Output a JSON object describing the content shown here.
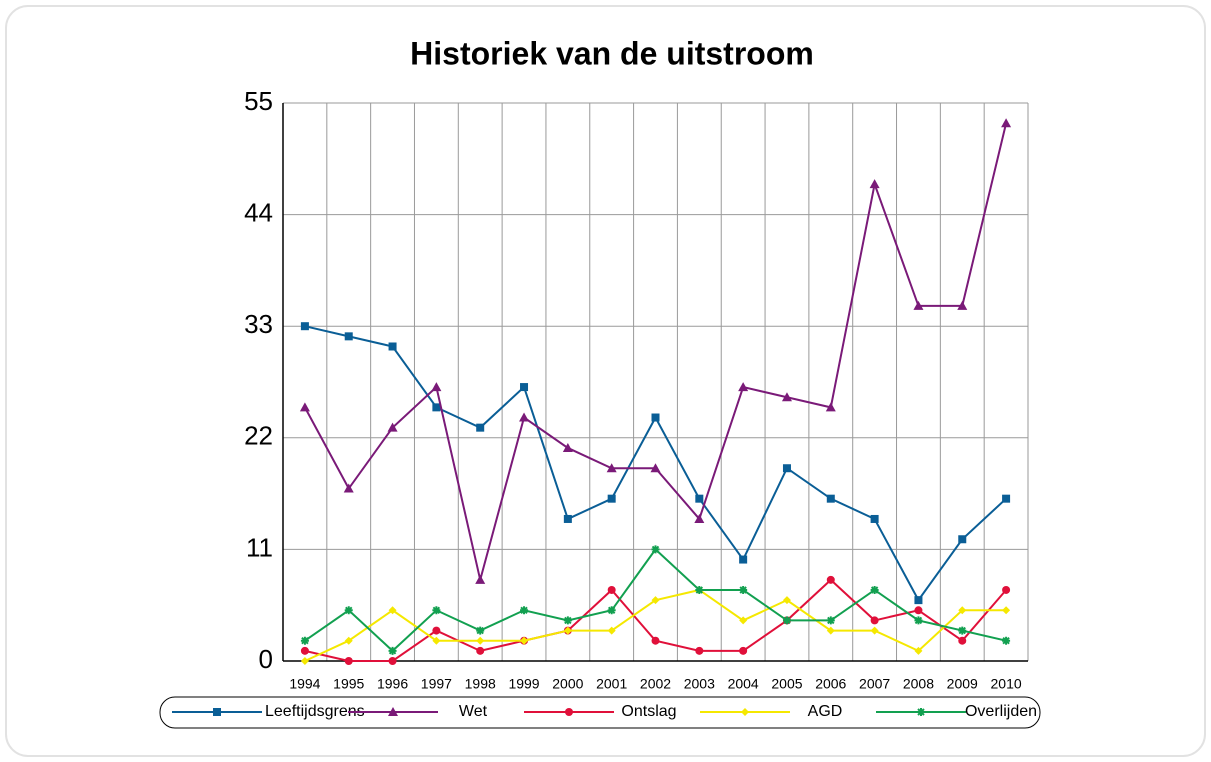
{
  "chart_data": {
    "type": "line",
    "title": "Historiek van de uitstroom",
    "categories": [
      "1994",
      "1995",
      "1996",
      "1997",
      "1998",
      "1999",
      "2000",
      "2001",
      "2002",
      "2003",
      "2004",
      "2005",
      "2006",
      "2007",
      "2008",
      "2009",
      "2010"
    ],
    "series": [
      {
        "name": "Leeftijdsgrens",
        "color": "#0a5e96",
        "marker": "square",
        "values": [
          33,
          32,
          31,
          25,
          23,
          27,
          14,
          16,
          24,
          16,
          10,
          19,
          16,
          14,
          6,
          12,
          16
        ]
      },
      {
        "name": "Wet",
        "color": "#7a1a78",
        "marker": "triangle",
        "values": [
          25,
          17,
          23,
          27,
          8,
          24,
          21,
          19,
          19,
          14,
          27,
          26,
          25,
          47,
          35,
          35,
          53
        ]
      },
      {
        "name": "Ontslag",
        "color": "#e0103a",
        "marker": "circle",
        "values": [
          1,
          0,
          0,
          3,
          1,
          2,
          3,
          7,
          2,
          1,
          1,
          4,
          8,
          4,
          5,
          2,
          7
        ]
      },
      {
        "name": "AGD",
        "color": "#f5e800",
        "marker": "diamond",
        "values": [
          0,
          2,
          5,
          2,
          2,
          2,
          3,
          3,
          6,
          7,
          4,
          6,
          3,
          3,
          1,
          5,
          5
        ]
      },
      {
        "name": "Overlijden",
        "color": "#12a050",
        "marker": "star",
        "values": [
          2,
          5,
          1,
          5,
          3,
          5,
          4,
          5,
          11,
          7,
          7,
          4,
          4,
          7,
          4,
          3,
          2
        ]
      }
    ],
    "ylim": [
      0,
      55
    ],
    "yticks": [
      0,
      11,
      22,
      33,
      44,
      55
    ],
    "grid": true
  }
}
